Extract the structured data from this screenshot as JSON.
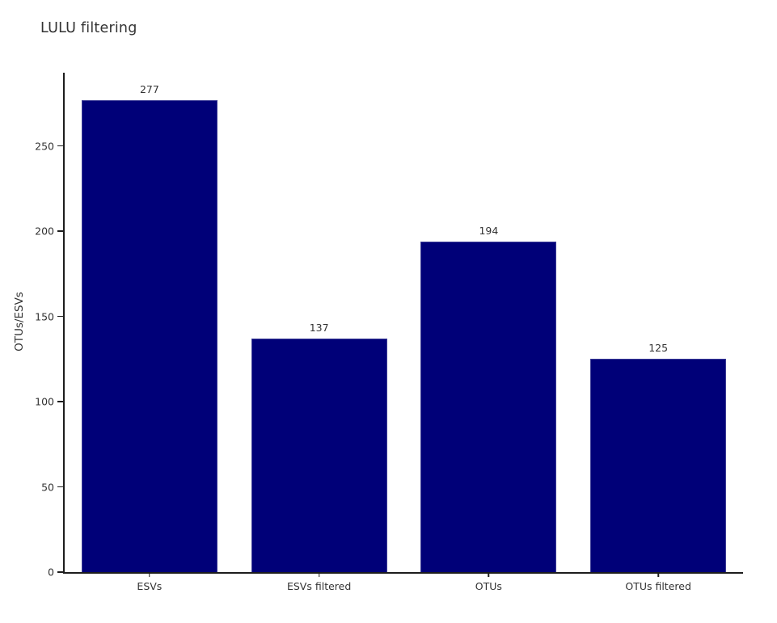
{
  "title": "LULU filtering",
  "chart_data": {
    "type": "bar",
    "title": "LULU filtering",
    "categories": [
      "ESVs",
      "ESVs filtered",
      "OTUs",
      "OTUs filtered"
    ],
    "values": [
      277,
      137,
      194,
      125
    ],
    "bar_labels": [
      "277",
      "137",
      "194",
      "125"
    ],
    "xlabel": "",
    "ylabel": "OTUs/ESVs",
    "ylim": [
      0,
      293
    ],
    "yticks": [
      0,
      50,
      100,
      150,
      200,
      250
    ],
    "bar_width_fraction": 0.8,
    "grid": false,
    "legend_position": "none",
    "colors": {
      "bar_fill": "#000078",
      "bar_edge": "#3c3c96",
      "axis_line": "#1d1d1d",
      "text": "#333333",
      "background": "#ffffff"
    }
  }
}
